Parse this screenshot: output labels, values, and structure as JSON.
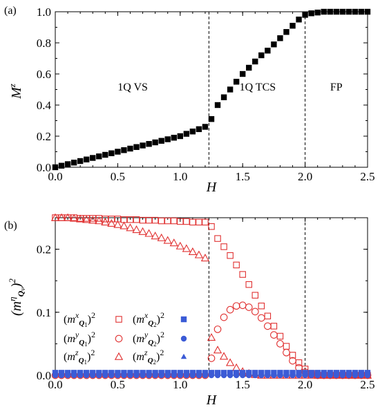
{
  "chart_data": [
    {
      "panel": "(a)",
      "type": "scatter",
      "xlabel": "H",
      "ylabel": "M^z",
      "xlim": [
        0.0,
        2.5
      ],
      "ylim": [
        0.0,
        1.0
      ],
      "xticks": [
        "0.0",
        "0.5",
        "1.0",
        "1.5",
        "2.0",
        "2.5"
      ],
      "yticks": [
        "0.0",
        "0.2",
        "0.4",
        "0.6",
        "0.8",
        "1.0"
      ],
      "vlines": [
        1.23,
        2.0
      ],
      "regions": [
        {
          "label": "1Q VS",
          "x": 0.62,
          "y": 0.52
        },
        {
          "label": "1Q TCS",
          "x": 1.62,
          "y": 0.52
        },
        {
          "label": "FP",
          "x": 2.25,
          "y": 0.52
        }
      ],
      "series": [
        {
          "marker": "filled-square",
          "color": "#000000",
          "x": [
            0.0,
            0.05,
            0.1,
            0.15,
            0.2,
            0.25,
            0.3,
            0.35,
            0.4,
            0.45,
            0.5,
            0.55,
            0.6,
            0.65,
            0.7,
            0.75,
            0.8,
            0.85,
            0.9,
            0.95,
            1.0,
            1.05,
            1.1,
            1.15,
            1.2,
            1.25,
            1.3,
            1.35,
            1.4,
            1.45,
            1.5,
            1.55,
            1.6,
            1.65,
            1.7,
            1.75,
            1.8,
            1.85,
            1.9,
            1.95,
            2.0,
            2.05,
            2.1,
            2.15,
            2.2,
            2.25,
            2.3,
            2.35,
            2.4,
            2.45,
            2.5
          ],
          "y": [
            0.0,
            0.01,
            0.02,
            0.03,
            0.04,
            0.05,
            0.06,
            0.07,
            0.08,
            0.09,
            0.1,
            0.11,
            0.12,
            0.13,
            0.14,
            0.15,
            0.16,
            0.17,
            0.18,
            0.19,
            0.2,
            0.215,
            0.23,
            0.245,
            0.26,
            0.31,
            0.4,
            0.45,
            0.5,
            0.55,
            0.6,
            0.64,
            0.68,
            0.72,
            0.75,
            0.79,
            0.83,
            0.87,
            0.91,
            0.95,
            0.98,
            0.99,
            0.995,
            1.0,
            1.0,
            1.0,
            1.0,
            1.0,
            1.0,
            1.0,
            1.0
          ]
        }
      ]
    },
    {
      "panel": "(b)",
      "type": "scatter",
      "xlabel": "H",
      "ylabel": "(m^η_Qν)^2",
      "xlim": [
        0.0,
        2.5
      ],
      "ylim": [
        0.0,
        0.25
      ],
      "xticks": [
        "0.0",
        "0.5",
        "1.0",
        "1.5",
        "2.0",
        "2.5"
      ],
      "yticks": [
        "0.0",
        "0.1",
        "0.2"
      ],
      "vlines": [
        1.23,
        2.0
      ],
      "series": [
        {
          "name": "(m^x_Q1)^2",
          "marker": "open-square",
          "color": "#e03030",
          "x": [
            0.0,
            0.05,
            0.1,
            0.15,
            0.2,
            0.25,
            0.3,
            0.35,
            0.4,
            0.45,
            0.5,
            0.55,
            0.6,
            0.65,
            0.7,
            0.75,
            0.8,
            0.85,
            0.9,
            0.95,
            1.0,
            1.05,
            1.1,
            1.15,
            1.2,
            1.25,
            1.3,
            1.35,
            1.4,
            1.45,
            1.5,
            1.55,
            1.6,
            1.65,
            1.7,
            1.75,
            1.8,
            1.85,
            1.9,
            1.95,
            2.0,
            2.05,
            2.1,
            2.15,
            2.2,
            2.25,
            2.3,
            2.35,
            2.4,
            2.45,
            2.5
          ],
          "y": [
            0.25,
            0.25,
            0.25,
            0.25,
            0.249,
            0.249,
            0.249,
            0.249,
            0.248,
            0.248,
            0.248,
            0.247,
            0.247,
            0.247,
            0.246,
            0.246,
            0.246,
            0.245,
            0.245,
            0.245,
            0.244,
            0.244,
            0.243,
            0.243,
            0.243,
            0.236,
            0.217,
            0.204,
            0.19,
            0.175,
            0.16,
            0.144,
            0.127,
            0.11,
            0.094,
            0.078,
            0.062,
            0.046,
            0.032,
            0.02,
            0.01,
            0.003,
            0.0,
            0.0,
            0.0,
            0.0,
            0.0,
            0.0,
            0.0,
            0.0,
            0.0
          ]
        },
        {
          "name": "(m^y_Q1)^2",
          "marker": "open-circle",
          "color": "#e03030",
          "x": [
            0.0,
            0.05,
            0.1,
            0.15,
            0.2,
            0.25,
            0.3,
            0.35,
            0.4,
            0.45,
            0.5,
            0.55,
            0.6,
            0.65,
            0.7,
            0.75,
            0.8,
            0.85,
            0.9,
            0.95,
            1.0,
            1.05,
            1.1,
            1.15,
            1.2,
            1.25,
            1.3,
            1.35,
            1.4,
            1.45,
            1.5,
            1.55,
            1.6,
            1.65,
            1.7,
            1.75,
            1.8,
            1.85,
            1.9,
            1.95,
            2.0,
            2.05,
            2.1,
            2.15,
            2.2,
            2.25,
            2.3,
            2.35,
            2.4,
            2.45,
            2.5
          ],
          "y": [
            0.0,
            0.0,
            0.0,
            0.0,
            0.0,
            0.0,
            0.0,
            0.0,
            0.0,
            0.0,
            0.0,
            0.0,
            0.0,
            0.0,
            0.0,
            0.0,
            0.0,
            0.0,
            0.0,
            0.0,
            0.0,
            0.0,
            0.0,
            0.0,
            0.0,
            0.027,
            0.073,
            0.092,
            0.104,
            0.11,
            0.111,
            0.108,
            0.101,
            0.091,
            0.078,
            0.064,
            0.05,
            0.036,
            0.023,
            0.012,
            0.005,
            0.001,
            0.0,
            0.0,
            0.0,
            0.0,
            0.0,
            0.0,
            0.0,
            0.0,
            0.0
          ]
        },
        {
          "name": "(m^z_Q1)^2",
          "marker": "open-triangle",
          "color": "#e03030",
          "x": [
            0.0,
            0.05,
            0.1,
            0.15,
            0.2,
            0.25,
            0.3,
            0.35,
            0.4,
            0.45,
            0.5,
            0.55,
            0.6,
            0.65,
            0.7,
            0.75,
            0.8,
            0.85,
            0.9,
            0.95,
            1.0,
            1.05,
            1.1,
            1.15,
            1.2,
            1.25,
            1.3,
            1.35,
            1.4,
            1.45,
            1.5,
            1.55,
            1.6,
            1.65,
            1.7,
            1.75,
            1.8,
            1.85,
            1.9,
            1.95,
            2.0,
            2.05,
            2.1,
            2.15,
            2.2,
            2.25,
            2.3,
            2.35,
            2.4,
            2.45,
            2.5
          ],
          "y": [
            0.25,
            0.25,
            0.25,
            0.249,
            0.248,
            0.247,
            0.246,
            0.245,
            0.243,
            0.241,
            0.239,
            0.237,
            0.234,
            0.231,
            0.228,
            0.225,
            0.221,
            0.218,
            0.214,
            0.21,
            0.205,
            0.201,
            0.196,
            0.191,
            0.186,
            0.06,
            0.04,
            0.03,
            0.02,
            0.012,
            0.006,
            0.003,
            0.001,
            0.0,
            0.0,
            0.0,
            0.0,
            0.0,
            0.0,
            0.0,
            0.0,
            0.0,
            0.0,
            0.0,
            0.0,
            0.0,
            0.0,
            0.0,
            0.0,
            0.0,
            0.0
          ]
        },
        {
          "name": "(m^x_Q2)^2",
          "marker": "filled-square",
          "color": "#3b5bd6",
          "x": [
            0.0,
            0.05,
            0.1,
            0.15,
            0.2,
            0.25,
            0.3,
            0.35,
            0.4,
            0.45,
            0.5,
            0.55,
            0.6,
            0.65,
            0.7,
            0.75,
            0.8,
            0.85,
            0.9,
            0.95,
            1.0,
            1.05,
            1.1,
            1.15,
            1.2,
            1.25,
            1.3,
            1.35,
            1.4,
            1.45,
            1.5,
            1.55,
            1.6,
            1.65,
            1.7,
            1.75,
            1.8,
            1.85,
            1.9,
            1.95,
            2.0,
            2.05,
            2.1,
            2.15,
            2.2,
            2.25,
            2.3,
            2.35,
            2.4,
            2.45,
            2.5
          ],
          "y": [
            0.004,
            0.004,
            0.004,
            0.004,
            0.004,
            0.004,
            0.004,
            0.004,
            0.004,
            0.004,
            0.004,
            0.004,
            0.004,
            0.004,
            0.004,
            0.004,
            0.004,
            0.004,
            0.004,
            0.004,
            0.004,
            0.004,
            0.004,
            0.004,
            0.004,
            0.004,
            0.004,
            0.004,
            0.004,
            0.004,
            0.004,
            0.004,
            0.004,
            0.004,
            0.004,
            0.004,
            0.004,
            0.004,
            0.004,
            0.004,
            0.004,
            0.004,
            0.004,
            0.004,
            0.004,
            0.004,
            0.004,
            0.004,
            0.004,
            0.004,
            0.004
          ]
        },
        {
          "name": "(m^y_Q2)^2",
          "marker": "filled-circle",
          "color": "#3b5bd6",
          "x": [
            0.0,
            0.05,
            0.1,
            0.15,
            0.2,
            0.25,
            0.3,
            0.35,
            0.4,
            0.45,
            0.5,
            0.55,
            0.6,
            0.65,
            0.7,
            0.75,
            0.8,
            0.85,
            0.9,
            0.95,
            1.0,
            1.05,
            1.1,
            1.15,
            1.2,
            1.25,
            1.3,
            1.35,
            1.4,
            1.45,
            1.5,
            1.55,
            1.6,
            1.65,
            1.7,
            1.75,
            1.8,
            1.85,
            1.9,
            1.95,
            2.0,
            2.05,
            2.1,
            2.15,
            2.2,
            2.25,
            2.3,
            2.35,
            2.4,
            2.45,
            2.5
          ],
          "y": [
            0.0,
            0.0,
            0.0,
            0.0,
            0.0,
            0.0,
            0.0,
            0.0,
            0.0,
            0.0,
            0.0,
            0.0,
            0.0,
            0.0,
            0.0,
            0.0,
            0.0,
            0.0,
            0.0,
            0.0,
            0.0,
            0.0,
            0.0,
            0.0,
            0.0,
            0.0,
            0.0,
            0.0,
            0.0,
            0.0,
            0.0,
            0.0,
            0.0,
            0.0,
            0.0,
            0.0,
            0.0,
            0.0,
            0.0,
            0.0,
            0.0,
            0.0,
            0.0,
            0.0,
            0.0,
            0.0,
            0.0,
            0.0,
            0.0,
            0.0,
            0.0
          ]
        },
        {
          "name": "(m^z_Q2)^2",
          "marker": "filled-triangle",
          "color": "#3b5bd6",
          "x": [
            0.0,
            0.05,
            0.1,
            0.15,
            0.2,
            0.25,
            0.3,
            0.35,
            0.4,
            0.45,
            0.5,
            0.55,
            0.6,
            0.65,
            0.7,
            0.75,
            0.8,
            0.85,
            0.9,
            0.95,
            1.0,
            1.05,
            1.1,
            1.15,
            1.2,
            1.25,
            1.3,
            1.35,
            1.4,
            1.45,
            1.5,
            1.55,
            1.6,
            1.65,
            1.7,
            1.75,
            1.8,
            1.85,
            1.9,
            1.95,
            2.0,
            2.05,
            2.1,
            2.15,
            2.2,
            2.25,
            2.3,
            2.35,
            2.4,
            2.45,
            2.5
          ],
          "y": [
            0.003,
            0.003,
            0.003,
            0.003,
            0.003,
            0.003,
            0.003,
            0.003,
            0.003,
            0.003,
            0.003,
            0.003,
            0.003,
            0.003,
            0.003,
            0.003,
            0.003,
            0.003,
            0.003,
            0.003,
            0.003,
            0.003,
            0.003,
            0.003,
            0.003,
            0.003,
            0.003,
            0.003,
            0.003,
            0.003,
            0.003,
            0.003,
            0.003,
            0.003,
            0.003,
            0.003,
            0.003,
            0.003,
            0.003,
            0.003,
            0.003,
            0.003,
            0.003,
            0.003,
            0.003,
            0.003,
            0.003,
            0.003,
            0.003,
            0.003,
            0.003
          ]
        }
      ],
      "legend_placement": "lower-left"
    }
  ]
}
